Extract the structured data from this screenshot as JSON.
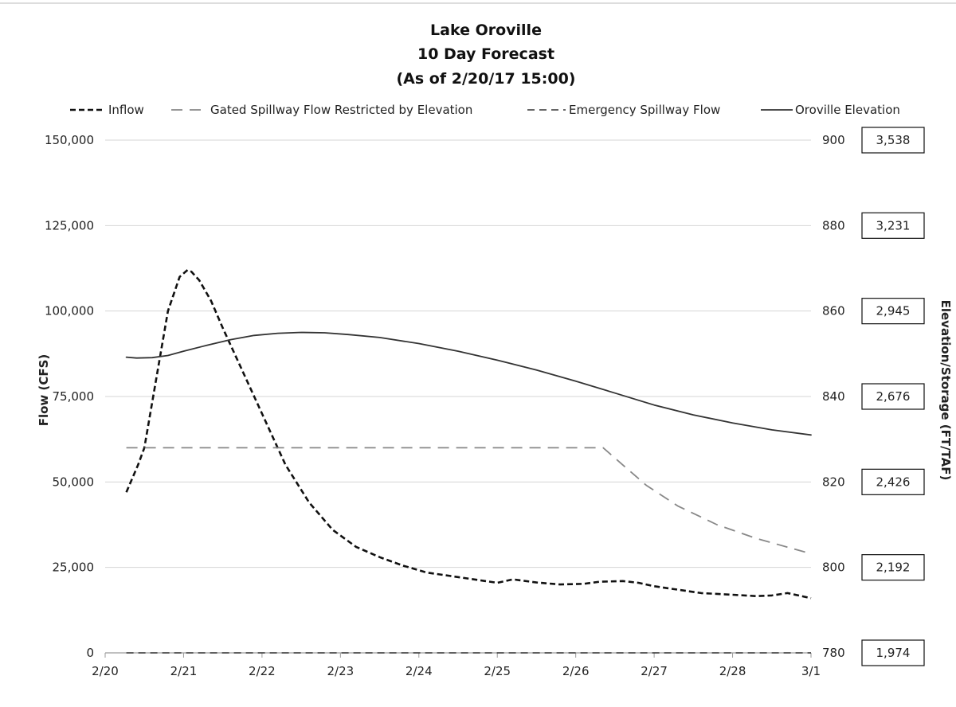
{
  "chart_data": {
    "type": "line",
    "title": [
      "Lake Oroville",
      "10 Day Forecast",
      "(As of 2/20/17 15:00)"
    ],
    "ylabel": "Flow (CFS)",
    "y2label": "Elevation/Storage (FT/TAF)",
    "x_tick_labels": [
      "2/20",
      "2/21",
      "2/22",
      "2/23",
      "2/24",
      "2/25",
      "2/26",
      "2/27",
      "2/28",
      "3/1"
    ],
    "xlim": [
      0,
      9
    ],
    "ylim": [
      0,
      150000
    ],
    "y_ticks": [
      0,
      25000,
      50000,
      75000,
      100000,
      125000,
      150000
    ],
    "y_tick_labels": [
      "0",
      "25,000",
      "50,000",
      "75,000",
      "100,000",
      "125,000",
      "150,000"
    ],
    "y2lim": [
      780,
      900
    ],
    "y2_ticks": [
      780,
      800,
      820,
      840,
      860,
      880,
      900
    ],
    "y2_tick_labels": [
      "780",
      "800",
      "820",
      "840",
      "860",
      "880",
      "900"
    ],
    "storage_labels": [
      "1,974",
      "2,192",
      "2,426",
      "2,676",
      "2,945",
      "3,231",
      "3,538"
    ],
    "grid": true,
    "legend_position": "top",
    "series": [
      {
        "name": "Inflow",
        "axis": "left",
        "color": "#111111",
        "style": "dotted",
        "x": [
          0.27,
          0.42,
          0.5,
          0.65,
          0.8,
          0.95,
          1.05,
          1.1,
          1.2,
          1.35,
          1.5,
          1.7,
          2.0,
          2.3,
          2.6,
          2.9,
          3.2,
          3.5,
          3.8,
          4.1,
          4.4,
          4.7,
          5.0,
          5.1,
          5.2,
          5.3,
          5.5,
          5.8,
          6.1,
          6.3,
          6.6,
          6.8,
          7.0,
          7.3,
          7.6,
          8.0,
          8.3,
          8.5,
          8.7,
          9.0
        ],
        "y": [
          47000,
          55000,
          60000,
          80000,
          100000,
          110000,
          112000,
          111500,
          109000,
          103000,
          95000,
          85000,
          70000,
          55000,
          44000,
          36000,
          31000,
          28000,
          25500,
          23500,
          22500,
          21500,
          20500,
          21000,
          21500,
          21200,
          20600,
          20000,
          20200,
          20800,
          21000,
          20500,
          19500,
          18500,
          17500,
          17000,
          16600,
          16800,
          17500,
          16000
        ]
      },
      {
        "name": "Gated Spillway Flow Restricted by Elevation",
        "axis": "left",
        "color": "#888888",
        "style": "dashed",
        "x": [
          0.27,
          6.35,
          6.6,
          6.9,
          7.3,
          7.8,
          8.3,
          9.0
        ],
        "y": [
          60000,
          60000,
          55000,
          49000,
          43000,
          37500,
          33500,
          29000
        ]
      },
      {
        "name": "Emergency Spillway Flow",
        "axis": "left",
        "color": "#333333",
        "style": "dashed-long",
        "x": [
          0.27,
          9.0
        ],
        "y": [
          0,
          0
        ]
      },
      {
        "name": "Oroville Elevation",
        "axis": "right",
        "color": "#333333",
        "style": "solid",
        "x": [
          0.27,
          0.4,
          0.6,
          0.8,
          1.0,
          1.3,
          1.6,
          1.9,
          2.2,
          2.5,
          2.8,
          3.1,
          3.5,
          4.0,
          4.5,
          5.0,
          5.5,
          6.0,
          6.5,
          7.0,
          7.5,
          8.0,
          8.5,
          9.0
        ],
        "y": [
          849.2,
          849.0,
          849.1,
          849.6,
          850.6,
          852.0,
          853.3,
          854.3,
          854.8,
          855.0,
          854.9,
          854.5,
          853.8,
          852.4,
          850.6,
          848.5,
          846.2,
          843.6,
          840.8,
          838.0,
          835.7,
          833.8,
          832.2,
          831.0
        ]
      }
    ]
  }
}
